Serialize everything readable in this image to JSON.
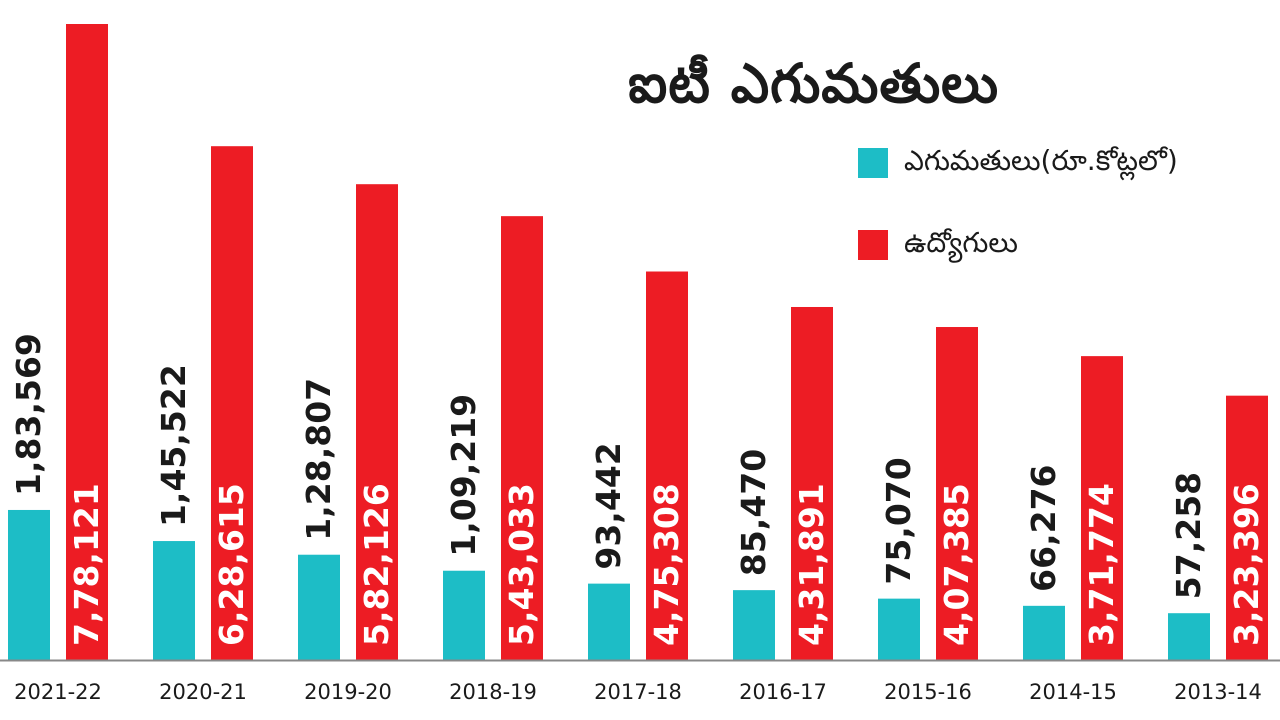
{
  "title": "ఐటీ ఎగుమతులు",
  "chart_data": {
    "type": "bar",
    "title": "ఐటీ ఎగుమతులు",
    "categories": [
      "2021-22",
      "2020-21",
      "2019-20",
      "2018-19",
      "2017-18",
      "2016-17",
      "2015-16",
      "2014-15",
      "2013-14"
    ],
    "series": [
      {
        "name": "ఎగుమతులు(రూ.కోట్లలో)",
        "color": "#1dbdc6",
        "values": [
          183569,
          145522,
          128807,
          109219,
          93442,
          85470,
          75070,
          66276,
          57258
        ],
        "labels": [
          "1,83,569",
          "1,45,522",
          "1,28,807",
          "1,09,219",
          "93,442",
          "85,470",
          "75,070",
          "66,276",
          "57,258"
        ]
      },
      {
        "name": "ఉద్యోగులు",
        "color": "#ed1c24",
        "values": [
          778121,
          628615,
          582126,
          543033,
          475308,
          431891,
          407385,
          371774,
          323396
        ],
        "labels": [
          "7,78,121",
          "6,28,615",
          "5,82,126",
          "5,43,033",
          "4,75,308",
          "4,31,891",
          "4,07,385",
          "3,71,774",
          "3,23,396"
        ]
      }
    ],
    "xlabel": "",
    "ylabel": "",
    "legend_position": "top-right",
    "grid": false
  }
}
